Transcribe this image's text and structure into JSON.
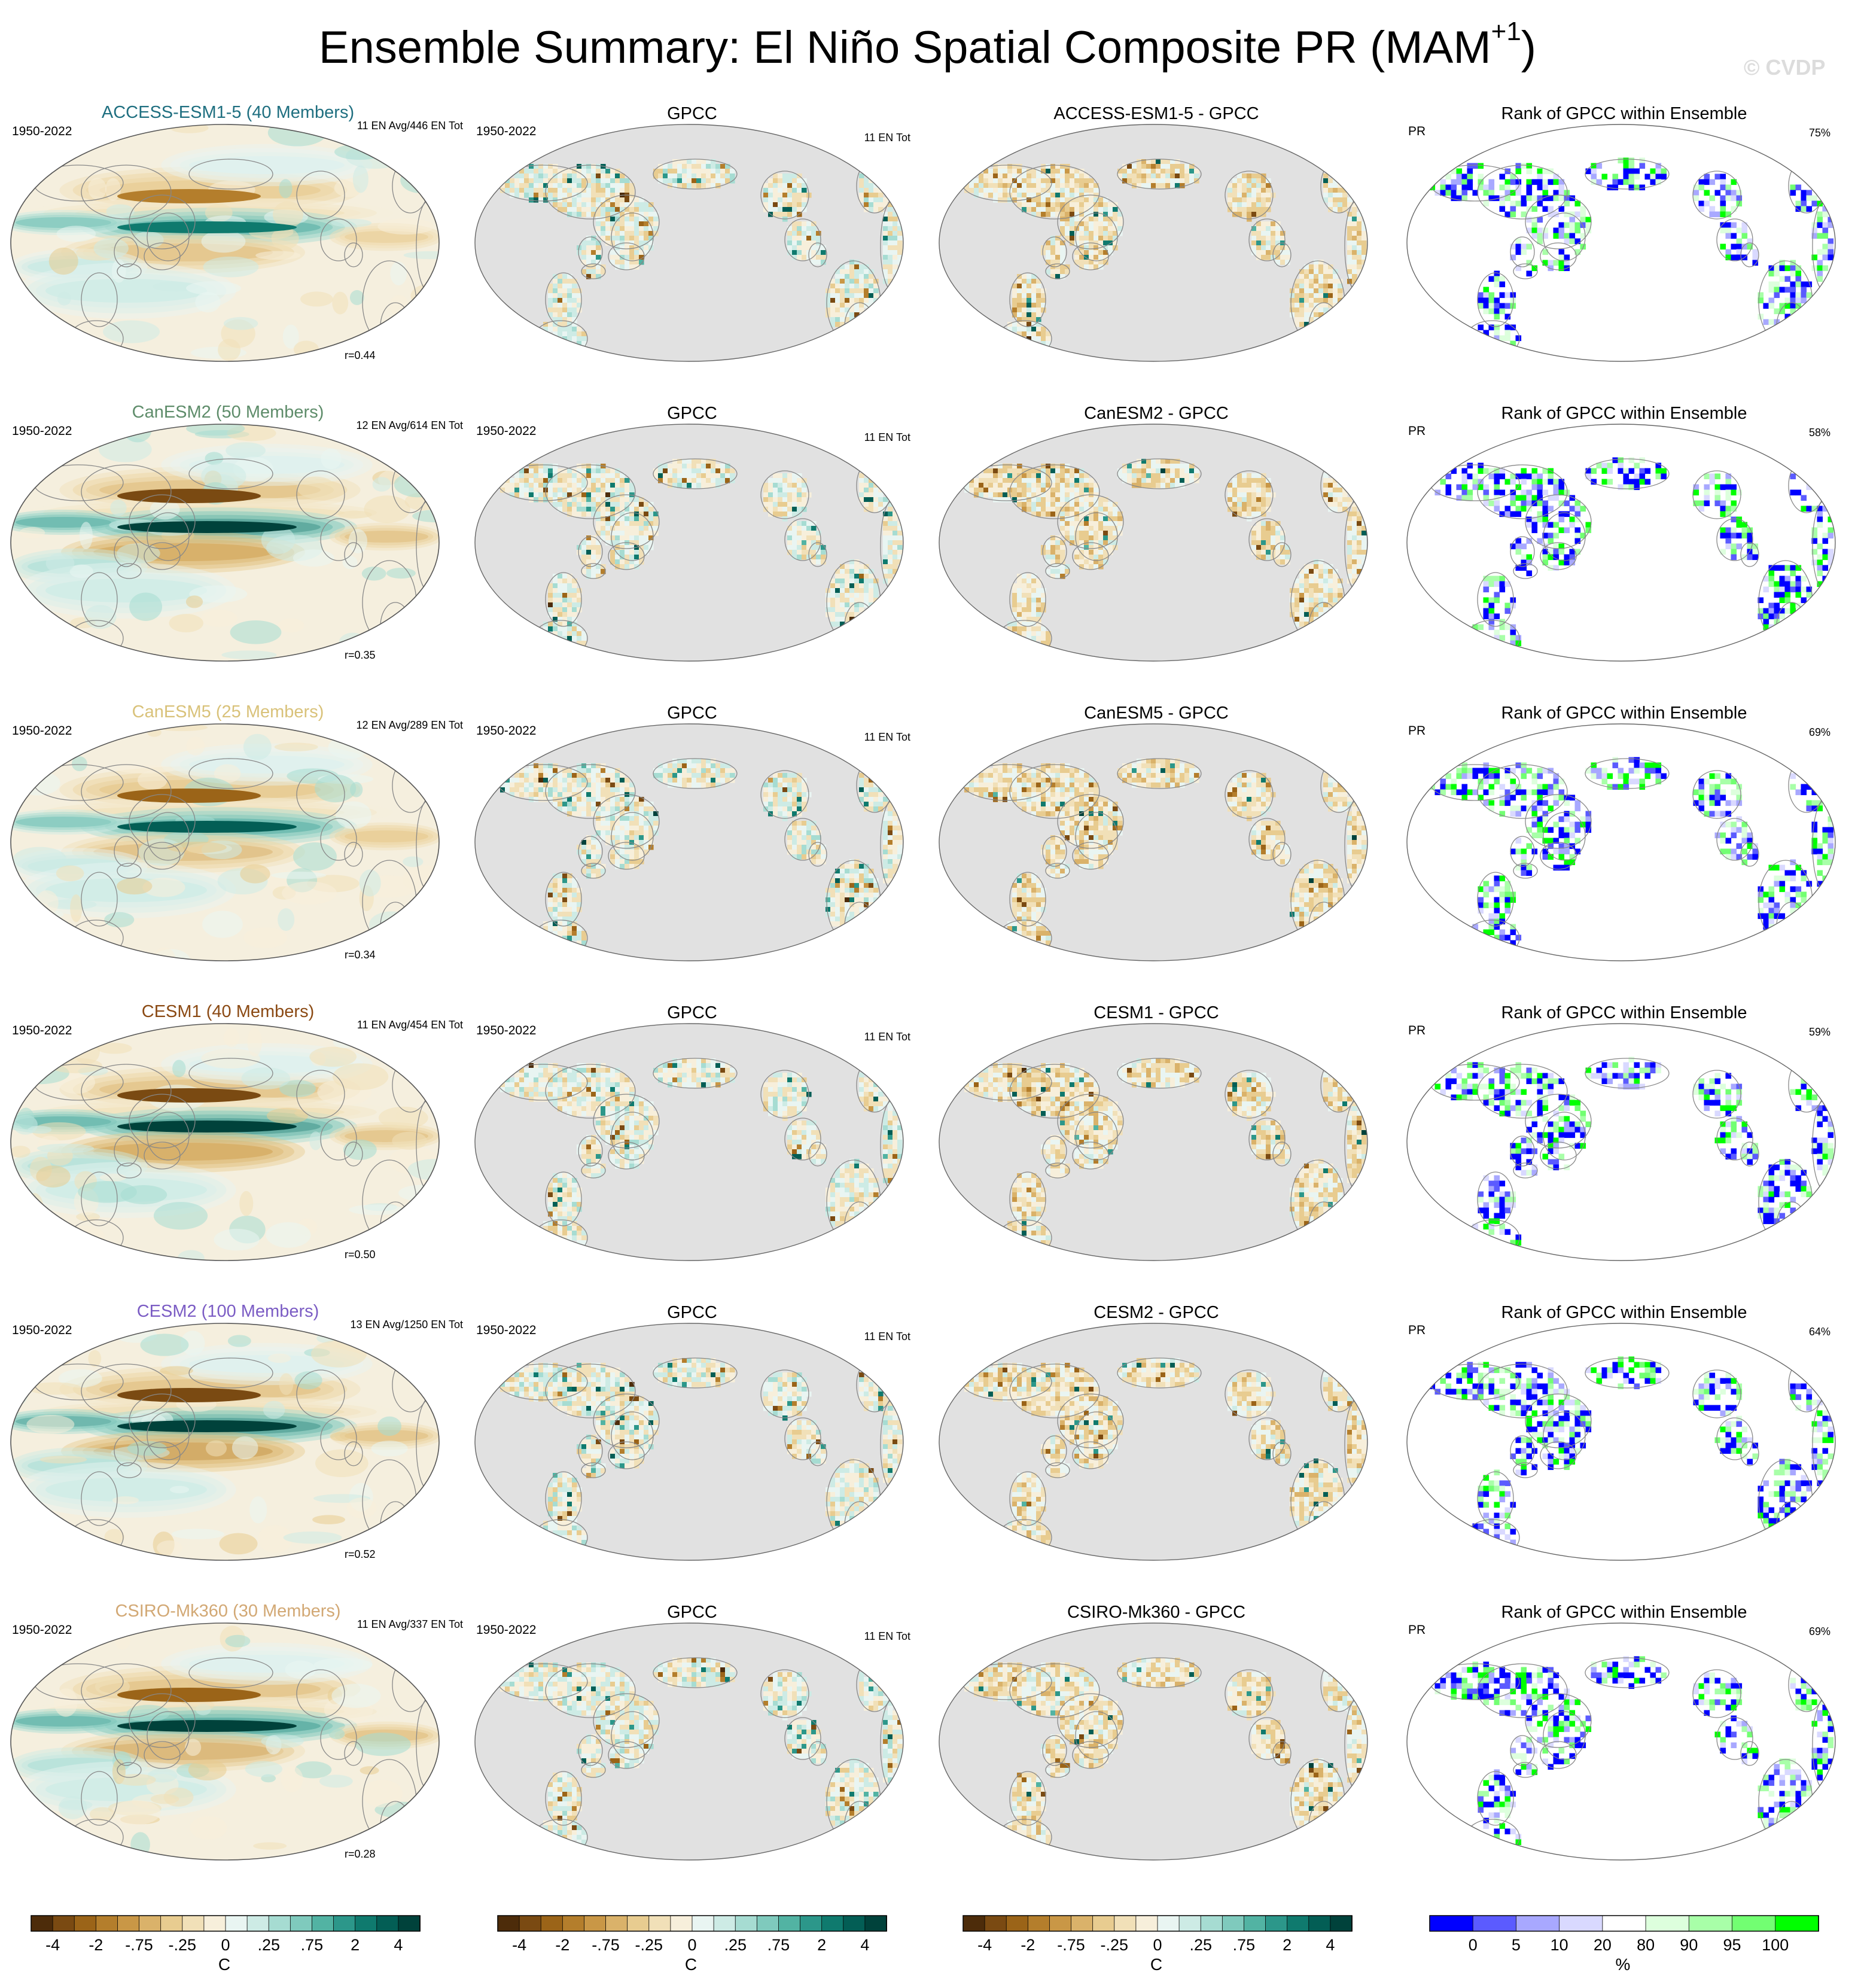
{
  "figure": {
    "title_main": "Ensemble Summary: El Niño Spatial Composite PR (MAM",
    "title_sup": "+1",
    "title_close": ")",
    "watermark": "© CVDP"
  },
  "colors": {
    "ocean_gray": "#e1e1e1",
    "coast": "#888888",
    "diverging": [
      "#4d2c0a",
      "#7a4a12",
      "#9b6418",
      "#b47e2c",
      "#c99746",
      "#dab26a",
      "#e8cc90",
      "#f1e0b8",
      "#f7efdb",
      "#e9f5f2",
      "#cdebe5",
      "#a6dcd2",
      "#7fcabd",
      "#52b3a3",
      "#2c978a",
      "#0f7a6e",
      "#035e55",
      "#00423b"
    ],
    "rank": [
      "#0000ff",
      "#5b5bff",
      "#a8a8ff",
      "#d9d9ff",
      "#ffffff",
      "#ddffdd",
      "#a8ffa8",
      "#72ff72",
      "#00ff00"
    ]
  },
  "chart_data": [
    {
      "type": "heatmap",
      "title": "ACCESS-ESM1-5 (40 Members)",
      "title_color": "#1f6f80",
      "period": "1950-2022",
      "count": "11 EN Avg/446 EN Tot",
      "r": "r=0.44",
      "variant": "model",
      "strength": 0.8
    },
    {
      "type": "heatmap",
      "title": "GPCC",
      "period": "1950-2022",
      "count": "11 EN Tot",
      "variant": "obs"
    },
    {
      "type": "heatmap",
      "title": "ACCESS-ESM1-5 - GPCC",
      "variant": "diff"
    },
    {
      "type": "heatmap",
      "title": "Rank of GPCC within Ensemble",
      "label": "PR",
      "pct": "75%",
      "variant": "rank"
    },
    {
      "type": "heatmap",
      "title": "CanESM2 (50 Members)",
      "title_color": "#5e8c6a",
      "period": "1950-2022",
      "count": "12 EN Avg/614 EN Tot",
      "r": "r=0.35",
      "variant": "model",
      "strength": 1.0
    },
    {
      "type": "heatmap",
      "title": "GPCC",
      "period": "1950-2022",
      "count": "11 EN Tot",
      "variant": "obs"
    },
    {
      "type": "heatmap",
      "title": "CanESM2 - GPCC",
      "variant": "diff"
    },
    {
      "type": "heatmap",
      "title": "Rank of GPCC within Ensemble",
      "label": "PR",
      "pct": "58%",
      "variant": "rank"
    },
    {
      "type": "heatmap",
      "title": "CanESM5 (25 Members)",
      "title_color": "#d9c27a",
      "period": "1950-2022",
      "count": "12 EN Avg/289 EN Tot",
      "r": "r=0.34",
      "variant": "model",
      "strength": 0.85
    },
    {
      "type": "heatmap",
      "title": "GPCC",
      "period": "1950-2022",
      "count": "11 EN Tot",
      "variant": "obs"
    },
    {
      "type": "heatmap",
      "title": "CanESM5 - GPCC",
      "variant": "diff"
    },
    {
      "type": "heatmap",
      "title": "Rank of GPCC within Ensemble",
      "label": "PR",
      "pct": "69%",
      "variant": "rank"
    },
    {
      "type": "heatmap",
      "title": "CESM1 (40 Members)",
      "title_color": "#8b4a14",
      "period": "1950-2022",
      "count": "11 EN Avg/454 EN Tot",
      "r": "r=0.50",
      "variant": "model",
      "strength": 1.0
    },
    {
      "type": "heatmap",
      "title": "GPCC",
      "period": "1950-2022",
      "count": "11 EN Tot",
      "variant": "obs"
    },
    {
      "type": "heatmap",
      "title": "CESM1 - GPCC",
      "variant": "diff"
    },
    {
      "type": "heatmap",
      "title": "Rank of GPCC within Ensemble",
      "label": "PR",
      "pct": "59%",
      "variant": "rank"
    },
    {
      "type": "heatmap",
      "title": "CESM2 (100 Members)",
      "title_color": "#7b5cc4",
      "period": "1950-2022",
      "count": "13 EN Avg/1250 EN Tot",
      "r": "r=0.52",
      "variant": "model",
      "strength": 1.05
    },
    {
      "type": "heatmap",
      "title": "GPCC",
      "period": "1950-2022",
      "count": "11 EN Tot",
      "variant": "obs"
    },
    {
      "type": "heatmap",
      "title": "CESM2 - GPCC",
      "variant": "diff"
    },
    {
      "type": "heatmap",
      "title": "Rank of GPCC within Ensemble",
      "label": "PR",
      "pct": "64%",
      "variant": "rank"
    },
    {
      "type": "heatmap",
      "title": "CSIRO-Mk360 (30 Members)",
      "title_color": "#d2a874",
      "period": "1950-2022",
      "count": "11 EN Avg/337 EN Tot",
      "r": "r=0.28",
      "variant": "model",
      "strength": 0.95
    },
    {
      "type": "heatmap",
      "title": "GPCC",
      "period": "1950-2022",
      "count": "11 EN Tot",
      "variant": "obs"
    },
    {
      "type": "heatmap",
      "title": "CSIRO-Mk360 - GPCC",
      "variant": "diff"
    },
    {
      "type": "heatmap",
      "title": "Rank of GPCC within Ensemble",
      "label": "PR",
      "pct": "69%",
      "variant": "rank"
    }
  ],
  "colorbars": [
    {
      "labels": [
        "-4",
        "-2",
        "-.75",
        "-.25",
        "0",
        ".25",
        ".75",
        "2",
        "4"
      ],
      "unit": "C",
      "kind": "diverging"
    },
    {
      "labels": [
        "-4",
        "-2",
        "-.75",
        "-.25",
        "0",
        ".25",
        ".75",
        "2",
        "4"
      ],
      "unit": "C",
      "kind": "diverging"
    },
    {
      "labels": [
        "-4",
        "-2",
        "-.75",
        "-.25",
        "0",
        ".25",
        ".75",
        "2",
        "4"
      ],
      "unit": "C",
      "kind": "diverging"
    },
    {
      "labels": [
        "0",
        "5",
        "10",
        "20",
        "80",
        "90",
        "95",
        "100"
      ],
      "unit": "%",
      "kind": "rank"
    }
  ]
}
